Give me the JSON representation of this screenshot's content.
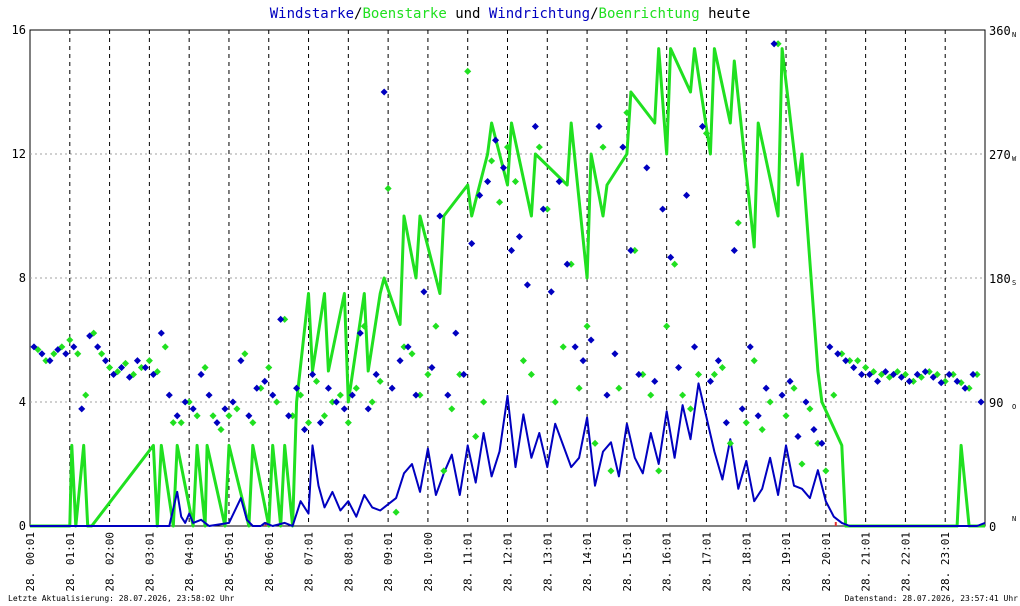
{
  "chart_data": {
    "type": "scatter",
    "title": {
      "parts": [
        {
          "text": "Windstarke",
          "color": "#0000c0"
        },
        {
          "text": "/",
          "color": "#000000"
        },
        {
          "text": "Boenstarke",
          "color": "#20e020"
        },
        {
          "text": " und ",
          "color": "#000000"
        },
        {
          "text": "Windrichtung",
          "color": "#0000c0"
        },
        {
          "text": "/",
          "color": "#000000"
        },
        {
          "text": "Boenrichtung",
          "color": "#20e020"
        },
        {
          "text": " heute",
          "color": "#000000"
        }
      ]
    },
    "ylim_left": [
      0,
      16
    ],
    "yticks_left": [
      "0",
      "4",
      "8",
      "12",
      "16"
    ],
    "ylim_right": [
      0,
      360
    ],
    "yticks_right": [
      "0",
      "90",
      "180",
      "270",
      "360"
    ],
    "right_dir_labels": [
      "N",
      "O",
      "S",
      "W",
      "N"
    ],
    "xlim": [
      0,
      24
    ],
    "x_tick_labels": [
      "28. 00:01",
      "28. 01:01",
      "28. 02:00",
      "28. 03:01",
      "28. 04:01",
      "28. 05:01",
      "28. 06:01",
      "28. 07:01",
      "28. 08:01",
      "28. 09:01",
      "28. 10:00",
      "28. 11:01",
      "28. 12:01",
      "28. 13:01",
      "28. 14:01",
      "28. 15:01",
      "28. 16:01",
      "28. 17:01",
      "28. 18:01",
      "28. 19:01",
      "28. 20:01",
      "28. 21:01",
      "28. 22:01",
      "28. 23:01"
    ],
    "x_tick_hours": [
      0.0,
      1.0,
      2.0,
      3.0,
      4.0,
      5.0,
      6.0,
      7.0,
      8.0,
      9.0,
      10.0,
      11.0,
      12.0,
      13.0,
      14.0,
      15.0,
      16.0,
      17.0,
      18.0,
      19.0,
      20.0,
      21.0,
      22.0,
      23.0
    ],
    "grid": true,
    "colors": {
      "wind": "#0000c0",
      "gust": "#20e020",
      "grid": "#a0a0a0",
      "marker": "#e03030"
    },
    "markers_hours": [
      5.92,
      20.25
    ],
    "series": [
      {
        "name": "Windstarke",
        "kind": "line",
        "color": "#0000c0",
        "x": [
          0,
          3.5,
          3.7,
          3.8,
          3.9,
          4.0,
          4.1,
          4.3,
          4.5,
          5.0,
          5.3,
          5.45,
          5.6,
          5.8,
          5.9,
          6.1,
          6.4,
          6.6,
          6.8,
          7.0,
          7.1,
          7.25,
          7.4,
          7.6,
          7.8,
          8.0,
          8.2,
          8.4,
          8.6,
          8.8,
          9.0,
          9.2,
          9.4,
          9.6,
          9.8,
          10.0,
          10.2,
          10.4,
          10.6,
          10.8,
          11.0,
          11.2,
          11.4,
          11.6,
          11.8,
          12.0,
          12.2,
          12.4,
          12.6,
          12.8,
          13.0,
          13.2,
          13.4,
          13.6,
          13.8,
          14.0,
          14.2,
          14.4,
          14.6,
          14.8,
          15.0,
          15.2,
          15.4,
          15.6,
          15.8,
          16.0,
          16.2,
          16.4,
          16.6,
          16.8,
          17.0,
          17.2,
          17.4,
          17.6,
          17.8,
          18.0,
          18.2,
          18.4,
          18.6,
          18.8,
          19.0,
          19.2,
          19.4,
          19.6,
          19.8,
          20.0,
          20.2,
          20.4,
          20.6,
          20.8,
          21.0,
          23.8,
          24.0
        ],
        "y": [
          0,
          0,
          1.1,
          0.3,
          0.1,
          0.4,
          0.1,
          0.2,
          0,
          0.1,
          0.9,
          0.2,
          0,
          0,
          0.1,
          0,
          0.1,
          0,
          0.8,
          0.4,
          2.6,
          1.3,
          0.6,
          1.1,
          0.5,
          0.8,
          0.3,
          1.0,
          0.6,
          0.5,
          0.7,
          0.9,
          1.7,
          2.0,
          1.1,
          2.5,
          1.0,
          1.7,
          2.3,
          1.0,
          2.6,
          1.4,
          3.0,
          1.6,
          2.4,
          4.2,
          1.9,
          3.6,
          2.2,
          3.0,
          1.9,
          3.3,
          2.6,
          1.9,
          2.2,
          3.5,
          1.3,
          2.4,
          2.7,
          1.6,
          3.3,
          2.2,
          1.7,
          3.0,
          2.0,
          3.7,
          2.2,
          3.9,
          2.8,
          4.6,
          3.5,
          2.4,
          1.5,
          2.8,
          1.2,
          2.1,
          0.8,
          1.2,
          2.2,
          1.0,
          2.6,
          1.3,
          1.2,
          0.9,
          1.8,
          0.8,
          0.3,
          0.1,
          0,
          0,
          0,
          0,
          0.1
        ]
      },
      {
        "name": "Boenstarke",
        "kind": "line",
        "color": "#20e020",
        "x": [
          0,
          1.0,
          1.05,
          1.15,
          1.35,
          1.45,
          1.55,
          3.1,
          3.2,
          3.3,
          3.6,
          3.7,
          4.1,
          4.2,
          4.4,
          4.45,
          4.9,
          5.0,
          5.5,
          5.6,
          6.0,
          6.1,
          6.3,
          6.4,
          6.6,
          6.7,
          7.0,
          7.1,
          7.4,
          7.5,
          7.9,
          8.0,
          8.4,
          8.5,
          8.8,
          8.9,
          9.3,
          9.4,
          9.7,
          9.8,
          10.3,
          10.4,
          11.0,
          11.1,
          11.5,
          11.6,
          12.0,
          12.1,
          12.6,
          12.7,
          13.5,
          13.6,
          14.0,
          14.1,
          14.4,
          14.5,
          15.0,
          15.1,
          15.7,
          15.8,
          16.0,
          16.1,
          16.6,
          16.7,
          17.1,
          17.2,
          17.6,
          17.7,
          18.2,
          18.3,
          18.8,
          18.9,
          19.3,
          19.4,
          19.8,
          19.9,
          20.4,
          20.5,
          21.0,
          23.3,
          23.4,
          23.6,
          23.7,
          24.0
        ],
        "y": [
          0,
          0,
          2.6,
          0,
          2.6,
          0,
          0,
          2.6,
          0,
          2.6,
          0,
          2.6,
          0,
          2.6,
          0,
          2.6,
          0,
          2.6,
          0,
          2.6,
          0,
          2.6,
          0,
          2.6,
          0,
          4.0,
          7.5,
          5.0,
          7.5,
          5.0,
          7.5,
          4.0,
          7.5,
          5.0,
          7.5,
          8.0,
          6.5,
          10.0,
          8.0,
          10.0,
          7.5,
          10.0,
          11.0,
          10.0,
          12.0,
          13.0,
          11.0,
          13.0,
          10.0,
          12.0,
          11.0,
          13.0,
          8.0,
          12.0,
          10.0,
          11.0,
          12.0,
          14.0,
          13.0,
          15.4,
          12.0,
          15.4,
          14.0,
          15.4,
          12.0,
          15.4,
          13.0,
          15.0,
          9.0,
          13.0,
          10.0,
          15.4,
          11.0,
          12.0,
          5.0,
          4.0,
          2.6,
          0,
          0,
          0,
          2.6,
          0,
          0,
          0
        ]
      },
      {
        "name": "Windrichtung",
        "kind": "points",
        "color": "#0000c0",
        "x": [
          0.1,
          0.3,
          0.5,
          0.7,
          0.9,
          1.1,
          1.3,
          1.5,
          1.7,
          1.9,
          2.1,
          2.3,
          2.5,
          2.7,
          2.9,
          3.1,
          3.3,
          3.5,
          3.7,
          3.9,
          4.1,
          4.3,
          4.5,
          4.7,
          4.9,
          5.1,
          5.3,
          5.5,
          5.7,
          5.9,
          6.1,
          6.3,
          6.5,
          6.7,
          6.9,
          7.1,
          7.3,
          7.5,
          7.7,
          7.9,
          8.1,
          8.3,
          8.5,
          8.7,
          8.9,
          9.1,
          9.3,
          9.5,
          9.7,
          9.9,
          10.1,
          10.3,
          10.5,
          10.7,
          10.9,
          11.1,
          11.3,
          11.5,
          11.7,
          11.9,
          12.1,
          12.3,
          12.5,
          12.7,
          12.9,
          13.1,
          13.3,
          13.5,
          13.7,
          13.9,
          14.1,
          14.3,
          14.5,
          14.7,
          14.9,
          15.1,
          15.3,
          15.5,
          15.7,
          15.9,
          16.1,
          16.3,
          16.5,
          16.7,
          16.9,
          17.1,
          17.3,
          17.5,
          17.7,
          17.9,
          18.1,
          18.3,
          18.5,
          18.7,
          18.9,
          19.1,
          19.3,
          19.5,
          19.7,
          19.9,
          20.1,
          20.3,
          20.5,
          20.7,
          20.9,
          21.1,
          21.3,
          21.5,
          21.7,
          21.9,
          22.1,
          22.3,
          22.5,
          22.7,
          22.9,
          23.1,
          23.3,
          23.5,
          23.7,
          23.9
        ],
        "y": [
          130,
          125,
          120,
          128,
          125,
          130,
          85,
          138,
          130,
          120,
          110,
          115,
          108,
          120,
          115,
          110,
          140,
          95,
          80,
          90,
          85,
          110,
          95,
          75,
          85,
          90,
          120,
          80,
          100,
          105,
          95,
          150,
          80,
          100,
          70,
          110,
          75,
          100,
          90,
          85,
          95,
          140,
          85,
          110,
          315,
          100,
          120,
          130,
          95,
          170,
          115,
          225,
          95,
          140,
          110,
          205,
          240,
          250,
          280,
          260,
          200,
          210,
          175,
          290,
          230,
          170,
          250,
          190,
          130,
          120,
          135,
          290,
          95,
          125,
          275,
          200,
          110,
          260,
          105,
          230,
          195,
          115,
          240,
          130,
          290,
          105,
          120,
          75,
          200,
          85,
          130,
          80,
          100,
          350,
          95,
          105,
          65,
          90,
          70,
          60,
          130,
          125,
          120,
          115,
          110,
          110,
          105,
          112,
          110,
          108,
          105,
          110,
          112,
          108,
          104,
          110,
          105,
          100,
          110,
          90
        ],
        "y_axis": "right"
      },
      {
        "name": "Boenrichtung",
        "kind": "points",
        "color": "#20e020",
        "x": [
          0.2,
          0.4,
          0.6,
          0.8,
          1.0,
          1.2,
          1.4,
          1.6,
          1.8,
          2.0,
          2.2,
          2.4,
          2.6,
          2.8,
          3.0,
          3.2,
          3.4,
          3.6,
          3.8,
          4.0,
          4.2,
          4.4,
          4.6,
          4.8,
          5.0,
          5.2,
          5.4,
          5.6,
          5.8,
          6.0,
          6.2,
          6.4,
          6.6,
          6.8,
          7.0,
          7.2,
          7.4,
          7.6,
          7.8,
          8.0,
          8.2,
          8.4,
          8.6,
          8.8,
          9.0,
          9.2,
          9.4,
          9.6,
          9.8,
          10.0,
          10.2,
          10.4,
          10.6,
          10.8,
          11.0,
          11.2,
          11.4,
          11.6,
          11.8,
          12.0,
          12.2,
          12.4,
          12.6,
          12.8,
          13.0,
          13.2,
          13.4,
          13.6,
          13.8,
          14.0,
          14.2,
          14.4,
          14.6,
          14.8,
          15.0,
          15.2,
          15.4,
          15.6,
          15.8,
          16.0,
          16.2,
          16.4,
          16.6,
          16.8,
          17.0,
          17.2,
          17.4,
          17.6,
          17.8,
          18.0,
          18.2,
          18.4,
          18.6,
          18.8,
          19.0,
          19.2,
          19.4,
          19.6,
          19.8,
          20.0,
          20.2,
          20.4,
          20.6,
          20.8,
          21.0,
          21.2,
          21.4,
          21.6,
          21.8,
          22.0,
          22.2,
          22.4,
          22.6,
          22.8,
          23.0,
          23.2,
          23.4,
          23.6,
          23.8
        ],
        "y": [
          128,
          120,
          125,
          130,
          135,
          125,
          95,
          140,
          125,
          115,
          112,
          118,
          110,
          115,
          120,
          112,
          130,
          75,
          75,
          90,
          80,
          115,
          80,
          70,
          80,
          85,
          125,
          75,
          100,
          115,
          90,
          150,
          80,
          95,
          75,
          105,
          80,
          90,
          95,
          75,
          100,
          145,
          90,
          105,
          245,
          10,
          130,
          125,
          95,
          110,
          145,
          40,
          85,
          110,
          330,
          65,
          90,
          265,
          235,
          275,
          250,
          120,
          110,
          275,
          230,
          90,
          130,
          190,
          100,
          145,
          60,
          275,
          40,
          100,
          300,
          200,
          110,
          95,
          40,
          145,
          190,
          95,
          85,
          110,
          285,
          110,
          115,
          60,
          220,
          75,
          120,
          70,
          90,
          350,
          80,
          100,
          45,
          85,
          60,
          40,
          95,
          125,
          120,
          120,
          115,
          112,
          110,
          108,
          112,
          110,
          105,
          108,
          112,
          110,
          105,
          110,
          104,
          100,
          110
        ],
        "y_axis": "right"
      }
    ]
  },
  "footer": {
    "left": "Letzte Aktualisierung: 28.07.2026, 23:58:02 Uhr",
    "right": "Datenstand: 28.07.2026, 23:57:41 Uhr"
  }
}
